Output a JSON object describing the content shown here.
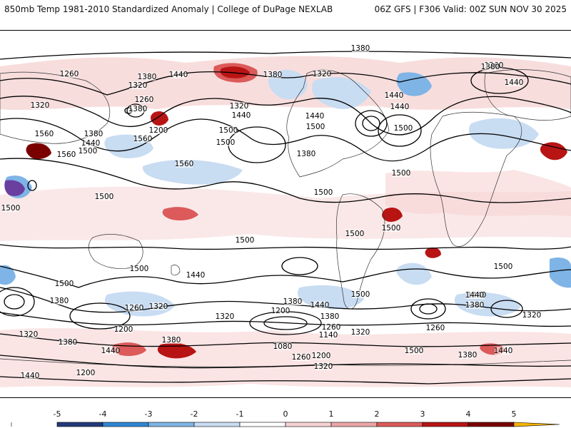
{
  "header": {
    "title_left": "850mb Temp 1981-2010 Standardized Anomaly | College of DuPage NEXLAB",
    "title_right": "06Z GFS | F306 Valid: 00Z SUN NOV 30 2025"
  },
  "colorbar": {
    "ticks": [
      "-5",
      "-4",
      "-3",
      "-2",
      "-1",
      "0",
      "1",
      "2",
      "3",
      "4",
      "5"
    ],
    "colors": [
      "#6a3fa0",
      "#233a7a",
      "#2f86d2",
      "#7fb4e6",
      "#c8dcf2",
      "#ffffff",
      "#f6d2d2",
      "#eca5a5",
      "#dc5a5a",
      "#b81414",
      "#7a0000",
      "#f5b400"
    ]
  },
  "contour_labels": [
    "1380",
    "1260",
    "1380",
    "1320",
    "1260",
    "1320",
    "1380",
    "1320",
    "1440",
    "1500",
    "1200",
    "1560",
    "1380",
    "1440",
    "1500",
    "1560",
    "1560",
    "1500",
    "1440",
    "1380",
    "1320",
    "1440",
    "1500",
    "1380",
    "1260",
    "1380",
    "1440",
    "1440",
    "1440",
    "1500",
    "1560",
    "1500",
    "1500",
    "1500",
    "1500",
    "1500",
    "1500",
    "1500",
    "1500",
    "1500",
    "1500",
    "1440",
    "1440",
    "1500",
    "1380",
    "1320",
    "1260",
    "1200",
    "1380",
    "1320",
    "1440",
    "1380",
    "1260",
    "1200",
    "1140",
    "1080",
    "1260",
    "1200",
    "1320",
    "1440",
    "1380",
    "1260",
    "1320",
    "1320",
    "1440",
    "1380",
    "1440",
    "1380",
    "1380",
    "1500",
    "1440",
    "1320",
    "1200"
  ]
}
